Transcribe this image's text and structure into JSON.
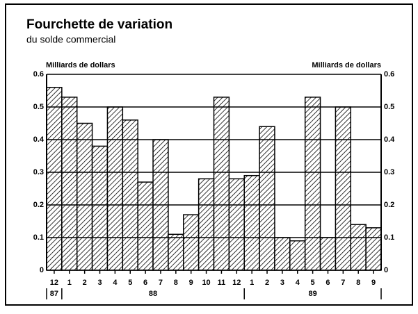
{
  "chart_data": {
    "type": "bar",
    "title": "Fourchette de variation",
    "subtitle": "du solde commercial",
    "ylabel": "Milliards de dollars",
    "y2label": "Milliards de dollars",
    "categories": [
      "12",
      "1",
      "2",
      "3",
      "4",
      "5",
      "6",
      "7",
      "8",
      "9",
      "10",
      "11",
      "12",
      "1",
      "2",
      "3",
      "4",
      "5",
      "6",
      "7",
      "8",
      "9"
    ],
    "values": [
      0.56,
      0.53,
      0.45,
      0.38,
      0.5,
      0.46,
      0.27,
      0.4,
      0.11,
      0.17,
      0.28,
      0.53,
      0.28,
      0.29,
      0.44,
      0.1,
      0.09,
      0.53,
      0.1,
      0.5,
      0.14,
      0.13
    ],
    "year_labels": [
      "87",
      "88",
      "89"
    ],
    "ylim": [
      0,
      0.6
    ],
    "yticks": [
      0,
      0.1,
      0.2,
      0.3,
      0.4,
      0.5,
      0.6
    ],
    "grid": true,
    "color": "#000000"
  }
}
